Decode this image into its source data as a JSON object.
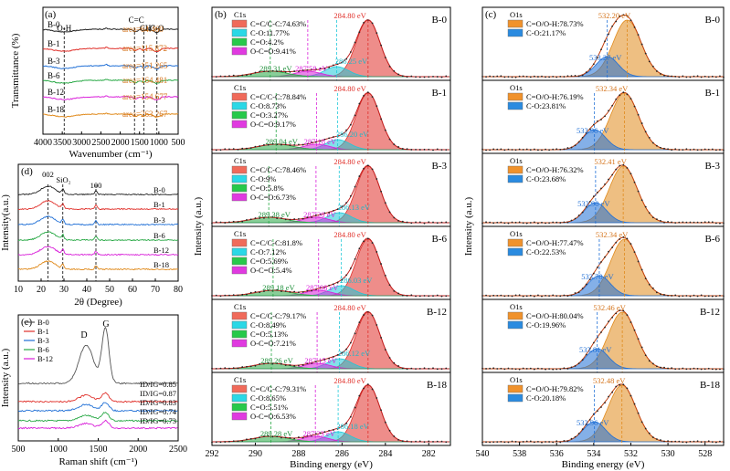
{
  "figure": {
    "colors": {
      "black": "#222222",
      "red": "#e0302a",
      "blue": "#1f6fd6",
      "green": "#27a844",
      "magenta": "#d91fd9",
      "orange": "#e08a1c",
      "cyan": "#1ec8d8",
      "gray": "#555555",
      "teal": "#189c94"
    }
  },
  "chart_data": [
    {
      "panel": "(a)",
      "type": "line",
      "title": "",
      "xlabel": "Wavenumber (cm⁻¹)",
      "ylabel": "Transmittance (%)",
      "xlim": [
        4000,
        500
      ],
      "xreversed": true,
      "xticks": [
        4000,
        3500,
        3000,
        2500,
        2000,
        1500,
        1000,
        500
      ],
      "xticklabels": [
        "4000",
        "3500",
        "3000",
        "2500",
        "2000",
        "1500",
        "1000",
        "500"
      ],
      "peak_labels": [
        {
          "text": "O-H",
          "x": 3450
        },
        {
          "text": "C=C",
          "x": 1630
        },
        {
          "text": "CH3",
          "x": 1390
        },
        {
          "text": "C-O",
          "x": 1050
        }
      ],
      "series": [
        {
          "name": "B-0",
          "color": "#222222",
          "area": "area=64.460"
        },
        {
          "name": "B-1",
          "color": "#e0302a",
          "area": "area=115.872"
        },
        {
          "name": "B-3",
          "color": "#1f6fd6",
          "area": "area=151.265"
        },
        {
          "name": "B-6",
          "color": "#27a844",
          "area": "area=164.481"
        },
        {
          "name": "B-12",
          "color": "#d91fd9",
          "area": "area=154.677"
        },
        {
          "name": "B-18",
          "color": "#e08a1c",
          "area": "area=263.267"
        }
      ]
    },
    {
      "panel": "(d)",
      "type": "line",
      "title": "",
      "xlabel": "2θ (Degree)",
      "ylabel": "Intensity(a.u.)",
      "xlim": [
        10,
        80
      ],
      "xticks": [
        10,
        20,
        30,
        40,
        50,
        60,
        70,
        80
      ],
      "peak_labels": [
        {
          "text": "002",
          "x": 23
        },
        {
          "text": "SiO₂",
          "x": 29.5
        },
        {
          "text": "100",
          "x": 44
        }
      ],
      "series": [
        {
          "name": "B-0",
          "color": "#222222"
        },
        {
          "name": "B-1",
          "color": "#e0302a"
        },
        {
          "name": "B-3",
          "color": "#1f6fd6"
        },
        {
          "name": "B-6",
          "color": "#27a844"
        },
        {
          "name": "B-12",
          "color": "#d91fd9"
        },
        {
          "name": "B-18",
          "color": "#e08a1c"
        }
      ]
    },
    {
      "panel": "(e)",
      "type": "line",
      "title": "",
      "xlabel": "Raman shift (cm⁻¹)",
      "ylabel": "Intensity (a.u.)",
      "xlim": [
        500,
        2500
      ],
      "xticks": [
        500,
        1000,
        1500,
        2000,
        2500
      ],
      "peak_labels": [
        {
          "text": "D",
          "x": 1350
        },
        {
          "text": "G",
          "x": 1590
        }
      ],
      "series": [
        {
          "name": "B-0",
          "color": "#555555",
          "ratio": "ID/IG=0.85"
        },
        {
          "name": "B-1",
          "color": "#e0302a",
          "ratio": "ID/IG=0.87"
        },
        {
          "name": "B-3",
          "color": "#1f6fd6",
          "ratio": "ID/IG=0.83"
        },
        {
          "name": "B-6",
          "color": "#27a844",
          "ratio": "ID/IG=0.74"
        },
        {
          "name": "B-12",
          "color": "#d91fd9",
          "ratio": "ID/IG=0.73"
        }
      ]
    },
    {
      "panel": "(b)",
      "type": "area",
      "title": "",
      "xlabel": "Binding energy (eV)",
      "ylabel": "Intensity (a.u.)",
      "xlim": [
        292,
        281
      ],
      "xreversed": true,
      "xticks": [
        292,
        290,
        288,
        286,
        284,
        282
      ],
      "core_level": "C1s",
      "samples": [
        {
          "name": "B-0",
          "legend": [
            "C=C/C-C:74.63%",
            "C-O:11.77%",
            "C=O:4.2%",
            "O-C=O:9.41%"
          ],
          "peaks": [
            {
              "label": "284.80 eV",
              "x": 284.8,
              "color": "#e0302a"
            },
            {
              "label": "286.25 eV",
              "x": 286.25,
              "color": "#1ec8d8"
            },
            {
              "label": "287.58 eV",
              "x": 287.58,
              "color": "#d91fd9"
            },
            {
              "label": "289.31 eV",
              "x": 289.31,
              "color": "#27a844"
            }
          ]
        },
        {
          "name": "B-1",
          "legend": [
            "C=C/C-C:78.84%",
            "C-O:8.73%",
            "C=O:3.27%",
            "O-C=O:9.17%"
          ],
          "peaks": [
            {
              "label": "284.80 eV",
              "x": 284.8,
              "color": "#e0302a"
            },
            {
              "label": "286.20 eV",
              "x": 286.2,
              "color": "#1ec8d8"
            },
            {
              "label": "287.18 eV",
              "x": 287.18,
              "color": "#d91fd9"
            },
            {
              "label": "289.04 eV",
              "x": 289.04,
              "color": "#27a844"
            }
          ]
        },
        {
          "name": "B-3",
          "legend": [
            "C=C/C-C:78.46%",
            "C-O:9%",
            "C=O:5.8%",
            "O-C=O:6.73%"
          ],
          "peaks": [
            {
              "label": "284.80 eV",
              "x": 284.8,
              "color": "#e0302a"
            },
            {
              "label": "286.13 eV",
              "x": 286.13,
              "color": "#1ec8d8"
            },
            {
              "label": "287.20 eV",
              "x": 287.2,
              "color": "#d91fd9"
            },
            {
              "label": "289.38 eV",
              "x": 289.38,
              "color": "#27a844"
            }
          ]
        },
        {
          "name": "B-6",
          "legend": [
            "C=C/C-C:81.8%",
            "C-O:7.12%",
            "C=O:5.69%",
            "O-C=O:5.4%"
          ],
          "peaks": [
            {
              "label": "284.80 eV",
              "x": 284.8,
              "color": "#e0302a"
            },
            {
              "label": "286.03 eV",
              "x": 286.03,
              "color": "#1ec8d8"
            },
            {
              "label": "287.08 eV",
              "x": 287.08,
              "color": "#d91fd9"
            },
            {
              "label": "289.18 eV",
              "x": 289.18,
              "color": "#27a844"
            }
          ]
        },
        {
          "name": "B-12",
          "legend": [
            "C=C/C-C:79.17%",
            "C-O:8.49%",
            "C=O:5.13%",
            "O-C=O:7.21%"
          ],
          "peaks": [
            {
              "label": "284.80 eV",
              "x": 284.8,
              "color": "#e0302a"
            },
            {
              "label": "286.12 eV",
              "x": 286.12,
              "color": "#1ec8d8"
            },
            {
              "label": "287.15 eV",
              "x": 287.15,
              "color": "#d91fd9"
            },
            {
              "label": "289.26 eV",
              "x": 289.26,
              "color": "#27a844"
            }
          ]
        },
        {
          "name": "B-18",
          "legend": [
            "C=C/C-C:79.31%",
            "C-O:8.65%",
            "C=O:5.51%",
            "O-C=O:6.53%"
          ],
          "peaks": [
            {
              "label": "284.80 eV",
              "x": 284.8,
              "color": "#e0302a"
            },
            {
              "label": "286.18 eV",
              "x": 286.18,
              "color": "#1ec8d8"
            },
            {
              "label": "287.23 eV",
              "x": 287.23,
              "color": "#d91fd9"
            },
            {
              "label": "289.28 eV",
              "x": 289.28,
              "color": "#27a844"
            }
          ]
        }
      ]
    },
    {
      "panel": "(c)",
      "type": "area",
      "title": "",
      "xlabel": "Binding energy (eV)",
      "ylabel": "Intensity (a.u.)",
      "xlim": [
        540,
        527
      ],
      "xreversed": true,
      "xticks": [
        540,
        538,
        536,
        534,
        532,
        530,
        528
      ],
      "core_level": "O1s",
      "samples": [
        {
          "name": "B-0",
          "legend": [
            "C=O/O-H:78.73%",
            "C-O:21.17%"
          ],
          "peaks": [
            {
              "label": "532.20 eV",
              "x": 532.2,
              "color": "#e08a1c"
            },
            {
              "label": "533.27 eV",
              "x": 533.27,
              "color": "#1f6fd6"
            }
          ]
        },
        {
          "name": "B-1",
          "legend": [
            "C=O/O-H:76.19%",
            "C-O:23.81%"
          ],
          "peaks": [
            {
              "label": "532.34 eV",
              "x": 532.34,
              "color": "#e08a1c"
            },
            {
              "label": "533.96 eV",
              "x": 533.96,
              "color": "#1f6fd6"
            }
          ]
        },
        {
          "name": "B-3",
          "legend": [
            "C=O/O-H:76.32%",
            "C-O:23.68%"
          ],
          "peaks": [
            {
              "label": "532.41 eV",
              "x": 532.41,
              "color": "#e08a1c"
            },
            {
              "label": "533.90 eV",
              "x": 533.9,
              "color": "#1f6fd6"
            }
          ]
        },
        {
          "name": "B-6",
          "legend": [
            "C=O/O-H:77.47%",
            "C-O:22.53%"
          ],
          "peaks": [
            {
              "label": "532.34 eV",
              "x": 532.34,
              "color": "#e08a1c"
            },
            {
              "label": "533.70 eV",
              "x": 533.7,
              "color": "#1f6fd6"
            }
          ]
        },
        {
          "name": "B-12",
          "legend": [
            "C=O/O-H:80.04%",
            "C-O:19.96%"
          ],
          "peaks": [
            {
              "label": "532.46 eV",
              "x": 532.46,
              "color": "#e08a1c"
            },
            {
              "label": "533.81 eV",
              "x": 533.81,
              "color": "#1f6fd6"
            }
          ]
        },
        {
          "name": "B-18",
          "legend": [
            "C=O/O-H:79.82%",
            "C-O:20.18%"
          ],
          "peaks": [
            {
              "label": "532.48 eV",
              "x": 532.48,
              "color": "#e08a1c"
            },
            {
              "label": "533.96 eV",
              "x": 533.96,
              "color": "#1f6fd6"
            }
          ]
        }
      ]
    }
  ]
}
